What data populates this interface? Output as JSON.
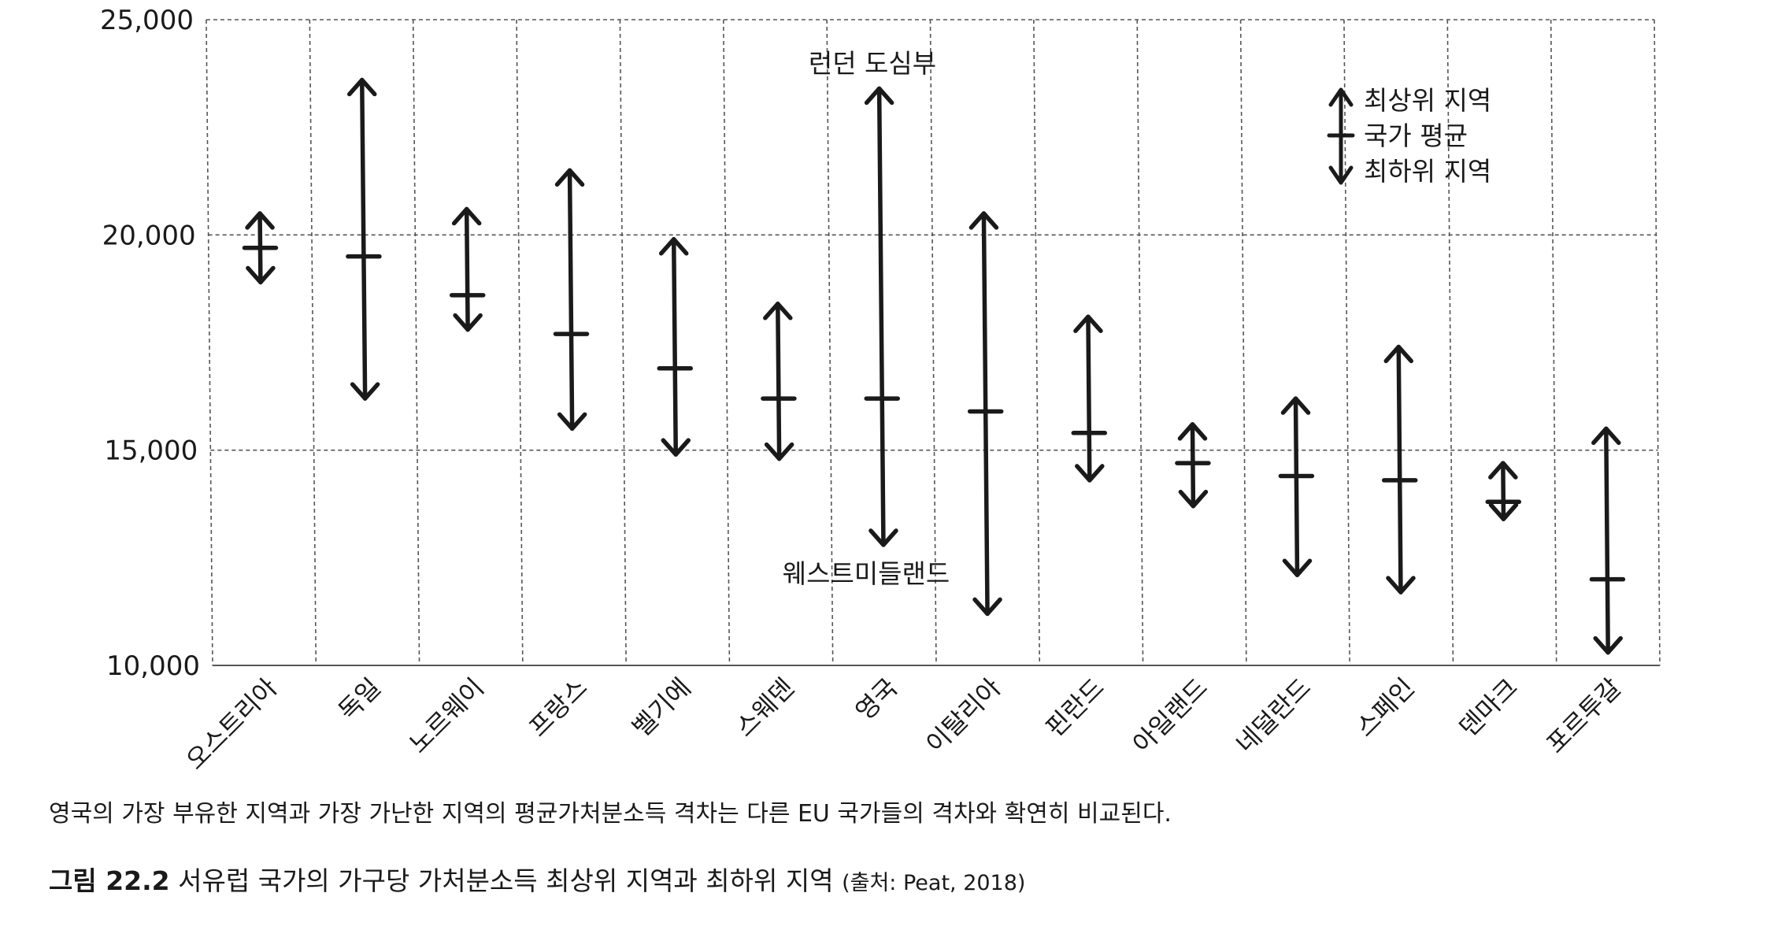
{
  "chart_data": {
    "type": "range",
    "categories": [
      "오스트리아",
      "독일",
      "노르웨이",
      "프랑스",
      "벨기에",
      "스웨덴",
      "영국",
      "이탈리아",
      "핀란드",
      "아일랜드",
      "네덜란드",
      "스페인",
      "덴마크",
      "포르투갈"
    ],
    "series": [
      {
        "name": "최상위 지역",
        "values": [
          20500,
          23600,
          20600,
          21500,
          19900,
          18400,
          23400,
          20500,
          18100,
          15600,
          16200,
          17400,
          14700,
          15500
        ]
      },
      {
        "name": "국가 평균",
        "values": [
          19700,
          19500,
          18600,
          17700,
          16900,
          16200,
          16200,
          15900,
          15400,
          14700,
          14400,
          14300,
          13800,
          12000
        ]
      },
      {
        "name": "최하위 지역",
        "values": [
          18900,
          16200,
          17800,
          15500,
          14900,
          14800,
          12800,
          11200,
          14300,
          13700,
          12100,
          11700,
          13400,
          10300
        ]
      }
    ],
    "yticks": [
      "10,000",
      "15,000",
      "20,000",
      "25,000"
    ],
    "ylim": [
      10000,
      25000
    ],
    "grid": true,
    "legend": {
      "position": "top-right",
      "entries": [
        "최상위 지역",
        "국가 평균",
        "최하위 지역"
      ]
    },
    "annotations": {
      "top": "런던 도심부",
      "bottom": "웨스트미들랜드"
    },
    "colors": {
      "line": "#1a1a1a",
      "grid": "#555555"
    }
  },
  "caption": "영국의 가장 부유한 지역과 가장 가난한 지역의 평균가처분소득 격차는 다른 EU 국가들의 격차와 확연히 비교된다.",
  "figure": {
    "number": "그림 22.2",
    "title": "서유럽 국가의 가구당 가처분소득 최상위 지역과 최하위 지역",
    "source": "(출처: Peat, 2018)"
  }
}
